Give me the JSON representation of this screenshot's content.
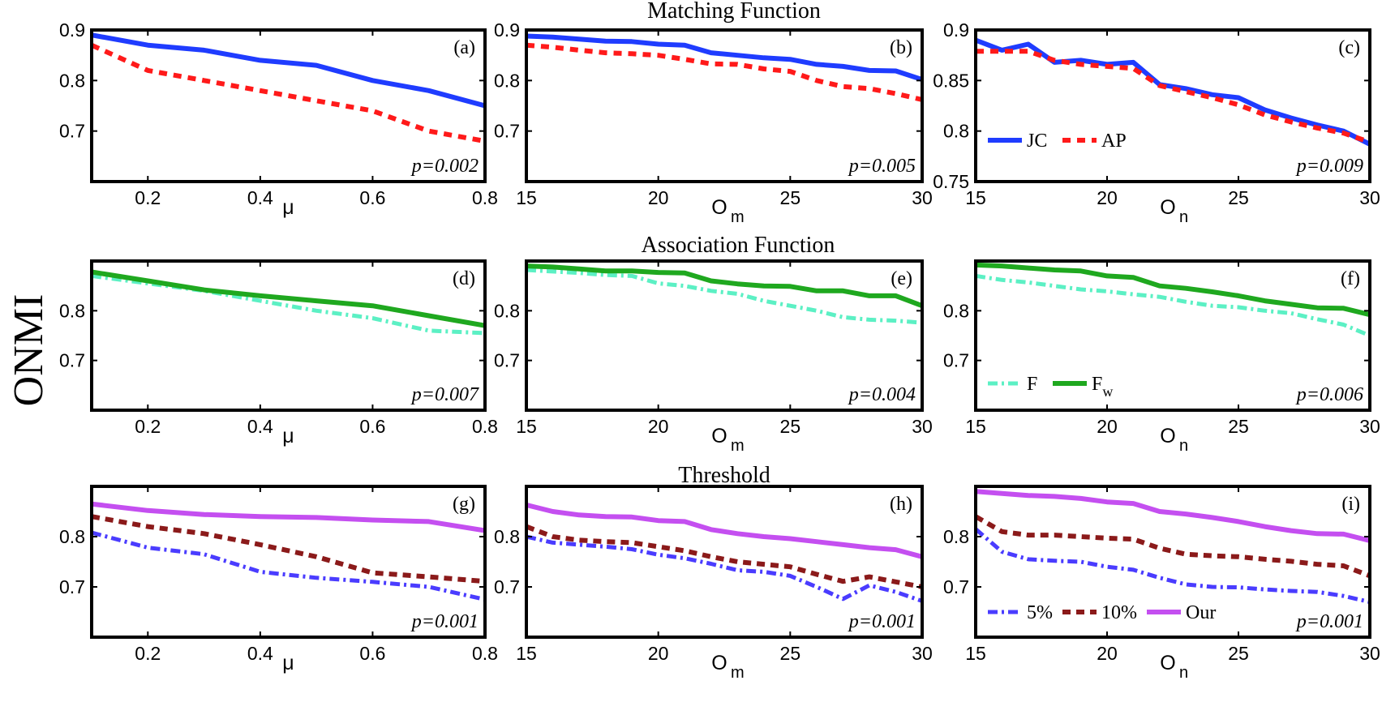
{
  "ylabel": "ONMI",
  "row_titles": [
    "Matching Function",
    "Association Function",
    "Threshold"
  ],
  "styles": {
    "JC": {
      "color": "#1f3cff",
      "dash": "",
      "width": 6
    },
    "AP": {
      "color": "#ff1a1a",
      "dash": "10,8",
      "width": 6
    },
    "F": {
      "color": "#5cf0c4",
      "dash": "12,5,3,5",
      "width": 5
    },
    "Fw": {
      "color": "#1fa81f",
      "dash": "",
      "width": 6
    },
    "5%": {
      "color": "#4a3cff",
      "dash": "12,5,3,5",
      "width": 5
    },
    "10%": {
      "color": "#8b1a1a",
      "dash": "10,7",
      "width": 6
    },
    "Our": {
      "color": "#c44ff0",
      "dash": "",
      "width": 6
    }
  },
  "chart_data": [
    {
      "id": "a",
      "type": "line",
      "panel_label": "(a)",
      "p_value": "p=0.002",
      "xlabel": "μ",
      "xlabel_sub": "",
      "xlim": [
        0.1,
        0.8
      ],
      "ylim": [
        0.6,
        0.9
      ],
      "xticks": [
        0.2,
        0.4,
        0.6,
        0.8
      ],
      "xtick_labels": [
        "0.2",
        "0.4",
        "0.6",
        "0.8"
      ],
      "yticks": [
        0.7,
        0.8,
        0.9
      ],
      "ytick_labels": [
        "0.7",
        "0.8",
        "0.9"
      ],
      "x": [
        0.1,
        0.2,
        0.3,
        0.4,
        0.5,
        0.6,
        0.7,
        0.8
      ],
      "series": [
        {
          "name": "JC",
          "values": [
            0.89,
            0.87,
            0.86,
            0.84,
            0.83,
            0.8,
            0.78,
            0.75
          ]
        },
        {
          "name": "AP",
          "values": [
            0.87,
            0.82,
            0.8,
            0.78,
            0.76,
            0.74,
            0.7,
            0.68
          ]
        }
      ]
    },
    {
      "id": "b",
      "type": "line",
      "panel_label": "(b)",
      "p_value": "p=0.005",
      "xlabel": "O",
      "xlabel_sub": "m",
      "xlim": [
        15,
        30
      ],
      "ylim": [
        0.6,
        0.9
      ],
      "xticks": [
        15,
        20,
        25,
        30
      ],
      "xtick_labels": [
        "15",
        "20",
        "25",
        "30"
      ],
      "yticks": [
        0.7,
        0.8,
        0.9
      ],
      "ytick_labels": [
        "0.7",
        "0.8",
        "0.9"
      ],
      "x": [
        15,
        16,
        17,
        18,
        19,
        20,
        21,
        22,
        23,
        24,
        25,
        26,
        27,
        28,
        29,
        30
      ],
      "series": [
        {
          "name": "JC",
          "values": [
            0.888,
            0.886,
            0.882,
            0.878,
            0.877,
            0.872,
            0.87,
            0.855,
            0.85,
            0.845,
            0.842,
            0.832,
            0.828,
            0.82,
            0.819,
            0.802
          ]
        },
        {
          "name": "AP",
          "values": [
            0.87,
            0.866,
            0.86,
            0.855,
            0.853,
            0.85,
            0.842,
            0.833,
            0.832,
            0.823,
            0.818,
            0.8,
            0.788,
            0.784,
            0.774,
            0.762
          ]
        }
      ]
    },
    {
      "id": "c",
      "type": "line",
      "panel_label": "(c)",
      "p_value": "p=0.009",
      "xlabel": "O",
      "xlabel_sub": "n",
      "xlim": [
        15,
        30
      ],
      "ylim": [
        0.75,
        0.9
      ],
      "xticks": [
        15,
        20,
        25,
        30
      ],
      "xtick_labels": [
        "15",
        "20",
        "25",
        "30"
      ],
      "yticks": [
        0.75,
        0.8,
        0.85,
        0.9
      ],
      "ytick_labels": [
        "0.75",
        "0.8",
        "0.85",
        "0.9"
      ],
      "x": [
        15,
        16,
        17,
        18,
        19,
        20,
        21,
        22,
        23,
        24,
        25,
        26,
        27,
        28,
        29,
        30
      ],
      "series": [
        {
          "name": "JC",
          "values": [
            0.89,
            0.88,
            0.886,
            0.868,
            0.87,
            0.866,
            0.868,
            0.846,
            0.842,
            0.836,
            0.833,
            0.821,
            0.813,
            0.806,
            0.8,
            0.787
          ]
        },
        {
          "name": "AP",
          "values": [
            0.879,
            0.879,
            0.879,
            0.87,
            0.866,
            0.864,
            0.862,
            0.845,
            0.839,
            0.833,
            0.826,
            0.816,
            0.809,
            0.803,
            0.798,
            0.789
          ]
        }
      ],
      "legend": {
        "location": "bottom-left",
        "entries": [
          "JC",
          "AP"
        ]
      }
    },
    {
      "id": "d",
      "type": "line",
      "panel_label": "(d)",
      "p_value": "p=0.007",
      "xlabel": "μ",
      "xlabel_sub": "",
      "xlim": [
        0.1,
        0.8
      ],
      "ylim": [
        0.6,
        0.9
      ],
      "xticks": [
        0.2,
        0.4,
        0.6,
        0.8
      ],
      "xtick_labels": [
        "0.2",
        "0.4",
        "0.6",
        "0.8"
      ],
      "yticks": [
        0.7,
        0.8
      ],
      "ytick_labels": [
        "0.7",
        "0.8"
      ],
      "x": [
        0.1,
        0.2,
        0.3,
        0.4,
        0.5,
        0.6,
        0.7,
        0.8
      ],
      "series": [
        {
          "name": "F",
          "values": [
            0.87,
            0.855,
            0.84,
            0.82,
            0.8,
            0.785,
            0.76,
            0.755
          ]
        },
        {
          "name": "Fw",
          "values": [
            0.878,
            0.86,
            0.842,
            0.83,
            0.82,
            0.81,
            0.79,
            0.77
          ]
        }
      ]
    },
    {
      "id": "e",
      "type": "line",
      "panel_label": "(e)",
      "p_value": "p=0.004",
      "xlabel": "O",
      "xlabel_sub": "m",
      "xlim": [
        15,
        30
      ],
      "ylim": [
        0.6,
        0.9
      ],
      "xticks": [
        15,
        20,
        25,
        30
      ],
      "xtick_labels": [
        "15",
        "20",
        "25",
        "30"
      ],
      "yticks": [
        0.7,
        0.8
      ],
      "ytick_labels": [
        "0.7",
        "0.8"
      ],
      "x": [
        15,
        16,
        17,
        18,
        19,
        20,
        21,
        22,
        23,
        24,
        25,
        26,
        27,
        28,
        29,
        30
      ],
      "series": [
        {
          "name": "F",
          "values": [
            0.882,
            0.879,
            0.876,
            0.872,
            0.87,
            0.855,
            0.85,
            0.84,
            0.834,
            0.82,
            0.81,
            0.8,
            0.787,
            0.782,
            0.78,
            0.776
          ]
        },
        {
          "name": "Fw",
          "values": [
            0.89,
            0.888,
            0.884,
            0.88,
            0.88,
            0.877,
            0.876,
            0.86,
            0.854,
            0.85,
            0.849,
            0.84,
            0.84,
            0.83,
            0.83,
            0.81
          ]
        }
      ]
    },
    {
      "id": "f",
      "type": "line",
      "panel_label": "(f)",
      "p_value": "p=0.006",
      "xlabel": "O",
      "xlabel_sub": "n",
      "xlim": [
        15,
        30
      ],
      "ylim": [
        0.6,
        0.9
      ],
      "xticks": [
        15,
        20,
        25,
        30
      ],
      "xtick_labels": [
        "15",
        "20",
        "25",
        "30"
      ],
      "yticks": [
        0.7,
        0.8
      ],
      "ytick_labels": [
        "0.7",
        "0.8"
      ],
      "x": [
        15,
        16,
        17,
        18,
        19,
        20,
        21,
        22,
        23,
        24,
        25,
        26,
        27,
        28,
        29,
        30
      ],
      "series": [
        {
          "name": "F",
          "values": [
            0.87,
            0.862,
            0.857,
            0.85,
            0.843,
            0.839,
            0.833,
            0.828,
            0.818,
            0.81,
            0.807,
            0.8,
            0.795,
            0.783,
            0.772,
            0.75
          ]
        },
        {
          "name": "Fw",
          "values": [
            0.892,
            0.89,
            0.886,
            0.882,
            0.88,
            0.87,
            0.867,
            0.85,
            0.845,
            0.838,
            0.83,
            0.82,
            0.813,
            0.806,
            0.805,
            0.792
          ]
        }
      ],
      "legend": {
        "location": "bottom-left",
        "entries": [
          "F",
          "Fw"
        ]
      }
    },
    {
      "id": "g",
      "type": "line",
      "panel_label": "(g)",
      "p_value": "p=0.001",
      "xlabel": "μ",
      "xlabel_sub": "",
      "xlim": [
        0.1,
        0.8
      ],
      "ylim": [
        0.6,
        0.9
      ],
      "xticks": [
        0.2,
        0.4,
        0.6,
        0.8
      ],
      "xtick_labels": [
        "0.2",
        "0.4",
        "0.6",
        "0.8"
      ],
      "yticks": [
        0.7,
        0.8
      ],
      "ytick_labels": [
        "0.7",
        "0.8"
      ],
      "x": [
        0.1,
        0.2,
        0.3,
        0.4,
        0.5,
        0.6,
        0.7,
        0.8
      ],
      "series": [
        {
          "name": "5%",
          "values": [
            0.808,
            0.778,
            0.765,
            0.73,
            0.718,
            0.71,
            0.7,
            0.675
          ]
        },
        {
          "name": "10%",
          "values": [
            0.84,
            0.82,
            0.806,
            0.784,
            0.76,
            0.728,
            0.72,
            0.711
          ]
        },
        {
          "name": "Our",
          "values": [
            0.865,
            0.852,
            0.844,
            0.84,
            0.838,
            0.833,
            0.83,
            0.812
          ]
        }
      ]
    },
    {
      "id": "h",
      "type": "line",
      "panel_label": "(h)",
      "p_value": "p=0.001",
      "xlabel": "O",
      "xlabel_sub": "m",
      "xlim": [
        15,
        30
      ],
      "ylim": [
        0.6,
        0.9
      ],
      "xticks": [
        15,
        20,
        25,
        30
      ],
      "xtick_labels": [
        "15",
        "20",
        "25",
        "30"
      ],
      "yticks": [
        0.7,
        0.8
      ],
      "ytick_labels": [
        "0.7",
        "0.8"
      ],
      "x": [
        15,
        16,
        17,
        18,
        19,
        20,
        21,
        22,
        23,
        24,
        25,
        26,
        27,
        28,
        29,
        30
      ],
      "series": [
        {
          "name": "5%",
          "values": [
            0.8,
            0.788,
            0.784,
            0.78,
            0.775,
            0.764,
            0.757,
            0.746,
            0.733,
            0.73,
            0.722,
            0.7,
            0.676,
            0.703,
            0.69,
            0.672
          ]
        },
        {
          "name": "10%",
          "values": [
            0.82,
            0.8,
            0.793,
            0.79,
            0.788,
            0.78,
            0.772,
            0.76,
            0.75,
            0.745,
            0.74,
            0.725,
            0.711,
            0.72,
            0.71,
            0.7
          ]
        },
        {
          "name": "Our",
          "values": [
            0.863,
            0.85,
            0.843,
            0.84,
            0.839,
            0.832,
            0.83,
            0.814,
            0.806,
            0.8,
            0.796,
            0.79,
            0.784,
            0.778,
            0.774,
            0.76
          ]
        }
      ]
    },
    {
      "id": "i",
      "type": "line",
      "panel_label": "(i)",
      "p_value": "p=0.001",
      "xlabel": "O",
      "xlabel_sub": "n",
      "xlim": [
        15,
        30
      ],
      "ylim": [
        0.6,
        0.9
      ],
      "xticks": [
        15,
        20,
        25,
        30
      ],
      "xtick_labels": [
        "15",
        "20",
        "25",
        "30"
      ],
      "yticks": [
        0.7,
        0.8
      ],
      "ytick_labels": [
        "0.7",
        "0.8"
      ],
      "x": [
        15,
        16,
        17,
        18,
        19,
        20,
        21,
        22,
        23,
        24,
        25,
        26,
        27,
        28,
        29,
        30
      ],
      "series": [
        {
          "name": "5%",
          "values": [
            0.815,
            0.77,
            0.755,
            0.752,
            0.75,
            0.74,
            0.734,
            0.718,
            0.705,
            0.7,
            0.699,
            0.695,
            0.692,
            0.69,
            0.682,
            0.67
          ]
        },
        {
          "name": "10%",
          "values": [
            0.84,
            0.81,
            0.803,
            0.803,
            0.8,
            0.797,
            0.795,
            0.777,
            0.765,
            0.762,
            0.76,
            0.755,
            0.751,
            0.745,
            0.742,
            0.722
          ]
        },
        {
          "name": "Our",
          "values": [
            0.89,
            0.886,
            0.882,
            0.88,
            0.876,
            0.869,
            0.866,
            0.85,
            0.845,
            0.838,
            0.83,
            0.82,
            0.812,
            0.806,
            0.805,
            0.792
          ]
        }
      ],
      "legend": {
        "location": "bottom-left",
        "entries": [
          "5%",
          "10%",
          "Our"
        ]
      }
    }
  ]
}
